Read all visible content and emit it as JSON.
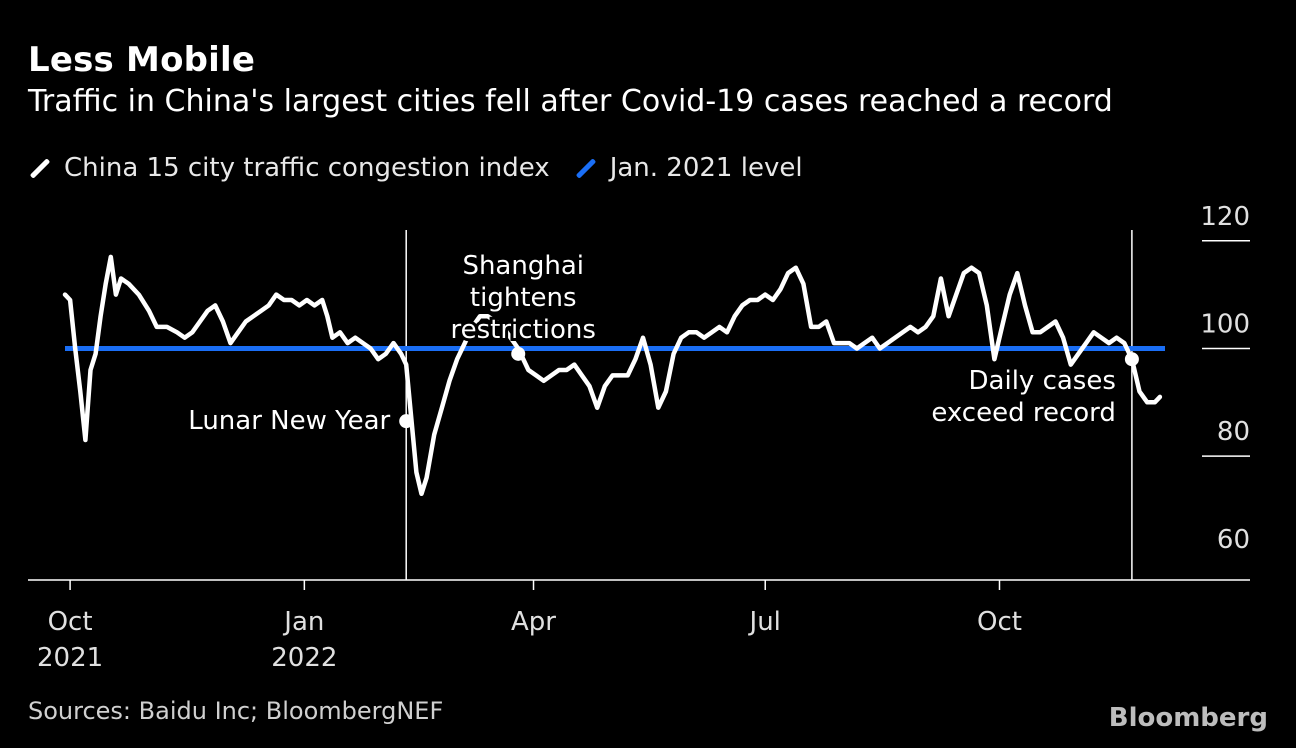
{
  "title": "Less Mobile",
  "subtitle": "Traffic in China's largest cities fell after Covid-19 cases reached a record",
  "legend": [
    {
      "label": "China 15 city traffic congestion index",
      "color": "#ffffff"
    },
    {
      "label": "Jan. 2021 level",
      "color": "#1a6ef5"
    }
  ],
  "source": "Sources: Baidu Inc; BloombergNEF",
  "brand": "Bloomberg",
  "chart_data": {
    "type": "line",
    "title": "Less Mobile",
    "xlabel": "",
    "ylabel": "",
    "ylim": [
      60,
      120
    ],
    "y_ticks": [
      60,
      80,
      100,
      120
    ],
    "x_range": [
      "2021-09-29",
      "2022-12-05"
    ],
    "x_ticks": [
      {
        "date": "2021-10-01",
        "label": [
          "Oct",
          "2021"
        ]
      },
      {
        "date": "2022-01-01",
        "label": [
          "Jan",
          "2022"
        ]
      },
      {
        "date": "2022-04-01",
        "label": [
          "Apr"
        ]
      },
      {
        "date": "2022-07-01",
        "label": [
          "Jul"
        ]
      },
      {
        "date": "2022-10-01",
        "label": [
          "Oct"
        ]
      }
    ],
    "reference_line": {
      "name": "Jan. 2021 level",
      "value": 100,
      "color": "#1a6ef5"
    },
    "series": [
      {
        "name": "China 15 city traffic congestion index",
        "color": "#ffffff",
        "points": [
          [
            "2021-09-29",
            110
          ],
          [
            "2021-10-01",
            109
          ],
          [
            "2021-10-03",
            100
          ],
          [
            "2021-10-05",
            92
          ],
          [
            "2021-10-07",
            83
          ],
          [
            "2021-10-09",
            96
          ],
          [
            "2021-10-11",
            99
          ],
          [
            "2021-10-13",
            106
          ],
          [
            "2021-10-15",
            112
          ],
          [
            "2021-10-17",
            117
          ],
          [
            "2021-10-19",
            110
          ],
          [
            "2021-10-21",
            113
          ],
          [
            "2021-10-24",
            112
          ],
          [
            "2021-10-28",
            110
          ],
          [
            "2021-11-01",
            107
          ],
          [
            "2021-11-04",
            104
          ],
          [
            "2021-11-08",
            104
          ],
          [
            "2021-11-12",
            103
          ],
          [
            "2021-11-15",
            102
          ],
          [
            "2021-11-18",
            103
          ],
          [
            "2021-11-21",
            105
          ],
          [
            "2021-11-24",
            107
          ],
          [
            "2021-11-27",
            108
          ],
          [
            "2021-11-30",
            105
          ],
          [
            "2021-12-03",
            101
          ],
          [
            "2021-12-06",
            103
          ],
          [
            "2021-12-09",
            105
          ],
          [
            "2021-12-12",
            106
          ],
          [
            "2021-12-15",
            107
          ],
          [
            "2021-12-18",
            108
          ],
          [
            "2021-12-21",
            110
          ],
          [
            "2021-12-24",
            109
          ],
          [
            "2021-12-27",
            109
          ],
          [
            "2021-12-30",
            108
          ],
          [
            "2022-01-02",
            109
          ],
          [
            "2022-01-05",
            108
          ],
          [
            "2022-01-08",
            109
          ],
          [
            "2022-01-10",
            106
          ],
          [
            "2022-01-12",
            102
          ],
          [
            "2022-01-15",
            103
          ],
          [
            "2022-01-18",
            101
          ],
          [
            "2022-01-21",
            102
          ],
          [
            "2022-01-24",
            101
          ],
          [
            "2022-01-27",
            100
          ],
          [
            "2022-01-30",
            98
          ],
          [
            "2022-02-02",
            99
          ],
          [
            "2022-02-05",
            101
          ],
          [
            "2022-02-08",
            99
          ],
          [
            "2022-02-10",
            97
          ],
          [
            "2022-02-12",
            87
          ],
          [
            "2022-02-14",
            77
          ],
          [
            "2022-02-16",
            73
          ],
          [
            "2022-02-18",
            76
          ],
          [
            "2022-02-21",
            84
          ],
          [
            "2022-02-24",
            89
          ],
          [
            "2022-02-27",
            94
          ],
          [
            "2022-03-02",
            98
          ],
          [
            "2022-03-05",
            101
          ],
          [
            "2022-03-08",
            104
          ],
          [
            "2022-03-11",
            106
          ],
          [
            "2022-03-14",
            106
          ],
          [
            "2022-03-17",
            105
          ],
          [
            "2022-03-20",
            104
          ],
          [
            "2022-03-23",
            102
          ],
          [
            "2022-03-26",
            100
          ],
          [
            "2022-03-30",
            96
          ],
          [
            "2022-04-02",
            95
          ],
          [
            "2022-04-05",
            94
          ],
          [
            "2022-04-08",
            95
          ],
          [
            "2022-04-11",
            96
          ],
          [
            "2022-04-14",
            96
          ],
          [
            "2022-04-17",
            97
          ],
          [
            "2022-04-20",
            95
          ],
          [
            "2022-04-23",
            93
          ],
          [
            "2022-04-26",
            89
          ],
          [
            "2022-04-29",
            93
          ],
          [
            "2022-05-02",
            95
          ],
          [
            "2022-05-05",
            95
          ],
          [
            "2022-05-08",
            95
          ],
          [
            "2022-05-11",
            98
          ],
          [
            "2022-05-14",
            102
          ],
          [
            "2022-05-17",
            97
          ],
          [
            "2022-05-20",
            89
          ],
          [
            "2022-05-23",
            92
          ],
          [
            "2022-05-26",
            99
          ],
          [
            "2022-05-29",
            102
          ],
          [
            "2022-06-01",
            103
          ],
          [
            "2022-06-04",
            103
          ],
          [
            "2022-06-07",
            102
          ],
          [
            "2022-06-10",
            103
          ],
          [
            "2022-06-13",
            104
          ],
          [
            "2022-06-16",
            103
          ],
          [
            "2022-06-19",
            106
          ],
          [
            "2022-06-22",
            108
          ],
          [
            "2022-06-25",
            109
          ],
          [
            "2022-06-28",
            109
          ],
          [
            "2022-07-01",
            110
          ],
          [
            "2022-07-04",
            109
          ],
          [
            "2022-07-07",
            111
          ],
          [
            "2022-07-10",
            114
          ],
          [
            "2022-07-13",
            115
          ],
          [
            "2022-07-16",
            112
          ],
          [
            "2022-07-19",
            104
          ],
          [
            "2022-07-22",
            104
          ],
          [
            "2022-07-25",
            105
          ],
          [
            "2022-07-28",
            101
          ],
          [
            "2022-07-31",
            101
          ],
          [
            "2022-08-03",
            101
          ],
          [
            "2022-08-06",
            100
          ],
          [
            "2022-08-09",
            101
          ],
          [
            "2022-08-12",
            102
          ],
          [
            "2022-08-15",
            100
          ],
          [
            "2022-08-18",
            101
          ],
          [
            "2022-08-21",
            102
          ],
          [
            "2022-08-24",
            103
          ],
          [
            "2022-08-27",
            104
          ],
          [
            "2022-08-30",
            103
          ],
          [
            "2022-09-02",
            104
          ],
          [
            "2022-09-05",
            106
          ],
          [
            "2022-09-08",
            113
          ],
          [
            "2022-09-11",
            106
          ],
          [
            "2022-09-14",
            110
          ],
          [
            "2022-09-17",
            114
          ],
          [
            "2022-09-20",
            115
          ],
          [
            "2022-09-23",
            114
          ],
          [
            "2022-09-26",
            108
          ],
          [
            "2022-09-29",
            98
          ],
          [
            "2022-10-02",
            104
          ],
          [
            "2022-10-05",
            110
          ],
          [
            "2022-10-08",
            114
          ],
          [
            "2022-10-11",
            108
          ],
          [
            "2022-10-14",
            103
          ],
          [
            "2022-10-17",
            103
          ],
          [
            "2022-10-20",
            104
          ],
          [
            "2022-10-23",
            105
          ],
          [
            "2022-10-26",
            102
          ],
          [
            "2022-10-29",
            97
          ],
          [
            "2022-11-01",
            99
          ],
          [
            "2022-11-04",
            101
          ],
          [
            "2022-11-07",
            103
          ],
          [
            "2022-11-10",
            102
          ],
          [
            "2022-11-13",
            101
          ],
          [
            "2022-11-16",
            102
          ],
          [
            "2022-11-19",
            101
          ],
          [
            "2022-11-22",
            98
          ],
          [
            "2022-11-25",
            92
          ],
          [
            "2022-11-28",
            90
          ],
          [
            "2022-12-01",
            90
          ],
          [
            "2022-12-03",
            91
          ]
        ]
      }
    ],
    "annotations": [
      {
        "date": "2022-02-10",
        "value": 86.5,
        "text": [
          "Lunar New Year"
        ],
        "anchor": "left"
      },
      {
        "date": "2022-03-26",
        "value": 99,
        "text": [
          "Shanghai",
          "tightens",
          "restrictions"
        ],
        "anchor": "above"
      },
      {
        "date": "2022-11-22",
        "value": 98,
        "text": [
          "Daily cases",
          "exceed record"
        ],
        "anchor": "below-left"
      }
    ]
  }
}
